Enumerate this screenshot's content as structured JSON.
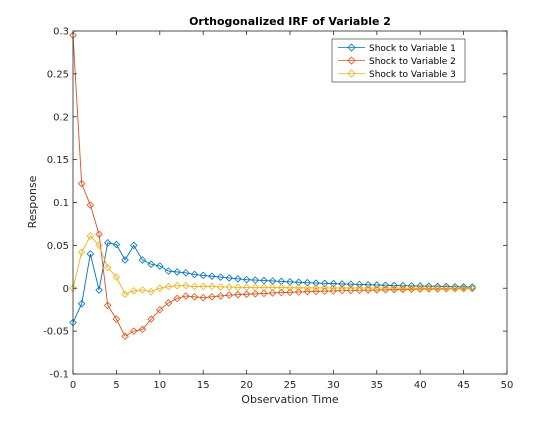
{
  "chart_data": {
    "type": "line",
    "title": "Orthogonalized IRF of Variable 2",
    "xlabel": "Observation Time",
    "ylabel": "Response",
    "xlim": [
      0,
      50
    ],
    "ylim": [
      -0.1,
      0.3
    ],
    "xticks": [
      "0",
      "5",
      "10",
      "15",
      "20",
      "25",
      "30",
      "35",
      "40",
      "45",
      "50"
    ],
    "yticks": [
      "-0.1",
      "-0.05",
      "0",
      "0.05",
      "0.1",
      "0.15",
      "0.2",
      "0.25",
      "0.3"
    ],
    "grid": false,
    "legend_position": "top-right",
    "marker": "diamond",
    "x": [
      0,
      1,
      2,
      3,
      4,
      5,
      6,
      7,
      8,
      9,
      10,
      11,
      12,
      13,
      14,
      15,
      16,
      17,
      18,
      19,
      20,
      21,
      22,
      23,
      24,
      25,
      26,
      27,
      28,
      29,
      30,
      31,
      32,
      33,
      34,
      35,
      36,
      37,
      38,
      39,
      40,
      41,
      42,
      43,
      44,
      45,
      46
    ],
    "series": [
      {
        "name": "Shock to Variable 1",
        "color": "#0072BD",
        "values": [
          -0.04,
          -0.018,
          0.04,
          -0.002,
          0.053,
          0.051,
          0.033,
          0.05,
          0.033,
          0.028,
          0.026,
          0.02,
          0.019,
          0.018,
          0.016,
          0.015,
          0.014,
          0.013,
          0.012,
          0.011,
          0.01,
          0.0095,
          0.009,
          0.0085,
          0.008,
          0.0075,
          0.007,
          0.0065,
          0.006,
          0.0057,
          0.0054,
          0.005,
          0.0047,
          0.0044,
          0.0041,
          0.0038,
          0.0035,
          0.0032,
          0.003,
          0.0028,
          0.0026,
          0.0024,
          0.0022,
          0.002,
          0.0018,
          0.0016,
          0.0014
        ]
      },
      {
        "name": "Shock to Variable 2",
        "color": "#D95319",
        "values": [
          0.295,
          0.122,
          0.097,
          0.063,
          -0.02,
          -0.036,
          -0.056,
          -0.05,
          -0.048,
          -0.036,
          -0.025,
          -0.017,
          -0.012,
          -0.009,
          -0.01,
          -0.011,
          -0.01,
          -0.009,
          -0.008,
          -0.0075,
          -0.007,
          -0.0065,
          -0.006,
          -0.0055,
          -0.005,
          -0.0047,
          -0.0044,
          -0.004,
          -0.0037,
          -0.0034,
          -0.0031,
          -0.0028,
          -0.0026,
          -0.0024,
          -0.0022,
          -0.002,
          -0.0018,
          -0.0016,
          -0.0014,
          -0.0012,
          -0.001,
          -0.0009,
          -0.0008,
          -0.0007,
          -0.0006,
          -0.0005,
          -0.0004
        ]
      },
      {
        "name": "Shock to Variable 3",
        "color": "#EDB120",
        "values": [
          0.0,
          0.042,
          0.061,
          0.05,
          0.024,
          0.013,
          -0.007,
          -0.003,
          -0.002,
          -0.004,
          0.0,
          0.002,
          0.003,
          0.003,
          0.002,
          0.002,
          0.002,
          0.0015,
          0.0015,
          0.001,
          0.001,
          0.001,
          0.001,
          0.0008,
          0.0008,
          0.0006,
          0.0006,
          0.0005,
          0.0005,
          0.0004,
          0.0004,
          0.0003,
          0.0003,
          0.0003,
          0.0002,
          0.0002,
          0.0002,
          0.0002,
          0.0001,
          0.0001,
          0.0001,
          0.0001,
          0.0001,
          0.0,
          0.0,
          0.0,
          0.0
        ]
      }
    ]
  }
}
